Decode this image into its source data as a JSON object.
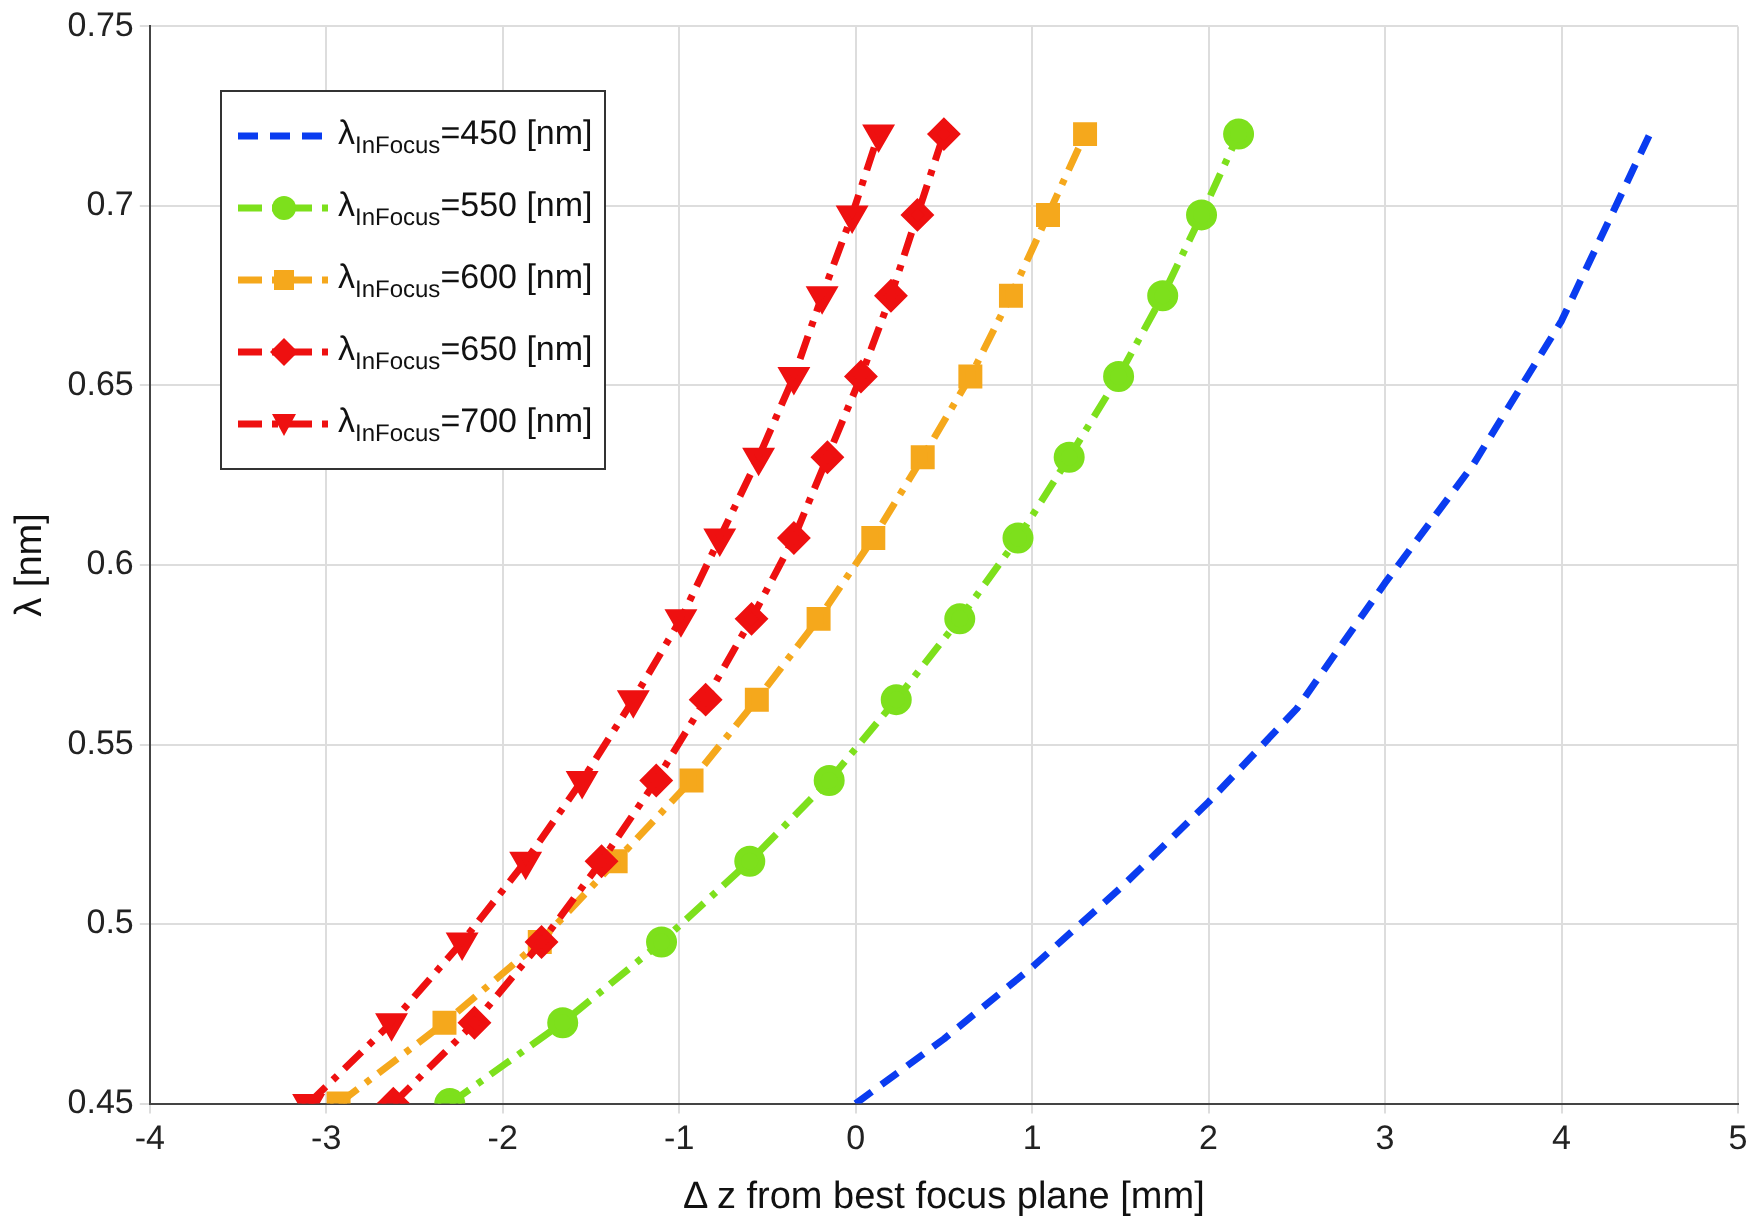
{
  "chart_data": {
    "type": "line",
    "xlabel": "Δ z from best focus plane [mm]",
    "ylabel": "λ [nm]",
    "xlim": [
      -4,
      5
    ],
    "xticks": [
      -4,
      -3,
      -2,
      -1,
      0,
      1,
      2,
      3,
      4,
      5
    ],
    "ylim": [
      0.45,
      0.75
    ],
    "yticks": [
      0.45,
      0.5,
      0.55,
      0.6,
      0.65,
      0.7,
      0.75
    ],
    "grid": true,
    "legend": "top left",
    "series": [
      {
        "name": "λ$_{InFocus}$=450 [nm]",
        "color": "#0a3cf0",
        "marker": "none",
        "line_style": "dashed",
        "x": [
          0,
          0.5,
          1,
          1.5,
          2,
          2.5,
          3,
          3.5,
          4,
          4.5
        ],
        "values": [
          0.45,
          0.468,
          0.488,
          0.51,
          0.534,
          0.56,
          0.595,
          0.628,
          0.668,
          0.72
        ]
      },
      {
        "name": "λ$_{InFocus}$=550 [nm]",
        "color": "#7de01c",
        "marker": "circle",
        "line_style": "dashdot",
        "x": [
          -2.3,
          -1.66,
          -1.1,
          -0.6,
          -0.15,
          0.23,
          0.59,
          0.92,
          1.21,
          1.49,
          1.74,
          1.96,
          2.17
        ],
        "values": [
          0.45,
          0.4725,
          0.495,
          0.5175,
          0.54,
          0.5625,
          0.585,
          0.6075,
          0.63,
          0.6525,
          0.675,
          0.6975,
          0.72
        ]
      },
      {
        "name": "λ$_{InFocus}$=600 [nm]",
        "color": "#f5a81c",
        "marker": "square",
        "line_style": "dashdot",
        "x": [
          -2.93,
          -2.33,
          -1.79,
          -1.36,
          -0.93,
          -0.56,
          -0.21,
          0.1,
          0.38,
          0.65,
          0.88,
          1.09,
          1.3
        ],
        "values": [
          0.45,
          0.4725,
          0.495,
          0.5175,
          0.54,
          0.5625,
          0.585,
          0.6075,
          0.63,
          0.6525,
          0.675,
          0.6975,
          0.72
        ]
      },
      {
        "name": "λ$_{InFocus}$=650 [nm]",
        "color": "#ee1010",
        "marker": "diamond",
        "line_style": "dashdot",
        "x": [
          -2.62,
          -2.16,
          -1.78,
          -1.44,
          -1.13,
          -0.85,
          -0.59,
          -0.35,
          -0.16,
          0.03,
          0.2,
          0.35,
          0.5
        ],
        "values": [
          0.45,
          0.4725,
          0.495,
          0.5175,
          0.54,
          0.5625,
          0.585,
          0.6075,
          0.63,
          0.6525,
          0.675,
          0.6975,
          0.72
        ]
      },
      {
        "name": "λ$_{InFocus}$=700 [nm]",
        "color": "#ee1010",
        "marker": "triangle",
        "line_style": "dashdot",
        "x": [
          -3.1,
          -2.63,
          -2.23,
          -1.87,
          -1.55,
          -1.26,
          -0.99,
          -0.77,
          -0.55,
          -0.35,
          -0.19,
          -0.02,
          0.13
        ],
        "values": [
          0.45,
          0.4725,
          0.495,
          0.5175,
          0.54,
          0.5625,
          0.585,
          0.6075,
          0.63,
          0.6525,
          0.675,
          0.6975,
          0.72
        ]
      }
    ]
  }
}
